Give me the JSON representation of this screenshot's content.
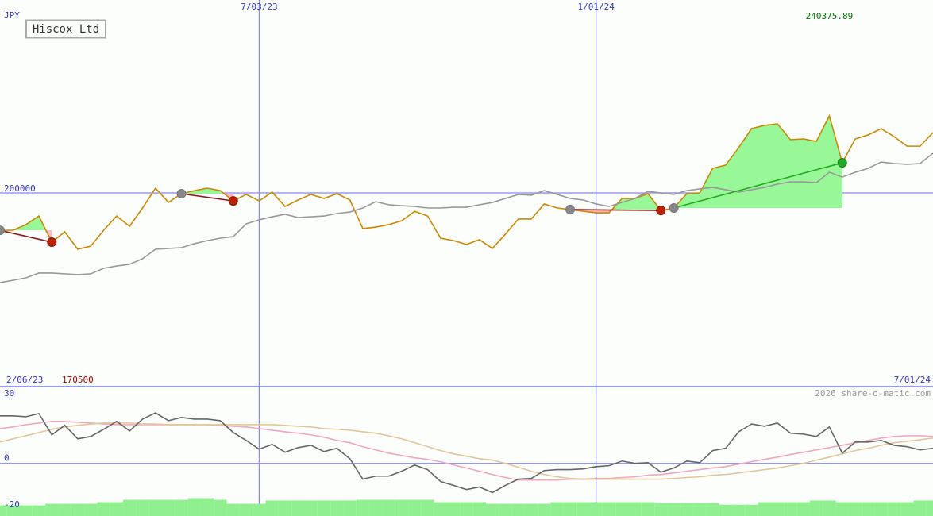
{
  "chart_data": [
    {
      "type": "line",
      "title": "Hiscox Ltd",
      "unit": "JPY",
      "xlim": [
        0,
        72
      ],
      "xticks": [
        {
          "value": 0,
          "label": "2/06/23"
        },
        {
          "value": 20,
          "label": "7/03/23"
        },
        {
          "value": 46,
          "label": "1/01/24"
        },
        {
          "value": 72,
          "label": "7/01/24"
        }
      ],
      "ylim": [
        98500,
        301100
      ],
      "yticks": [
        200000
      ],
      "series": [
        {
          "color": "#cc8800",
          "label_extremes": true,
          "values": [
            180400,
            180400,
            183400,
            187900,
            174200,
            179600,
            170500,
            172100,
            180400,
            187900,
            182500,
            192100,
            202500,
            195000,
            199600,
            201200,
            202500,
            201200,
            195800,
            199200,
            195800,
            200400,
            192900,
            196300,
            199200,
            197100,
            199600,
            196300,
            181300,
            182100,
            183400,
            185400,
            190400,
            187900,
            176300,
            175000,
            173000,
            175500,
            170922.24,
            178400,
            186300,
            186300,
            194200,
            192100,
            191300,
            190400,
            189600,
            189600,
            197100,
            197100,
            199600,
            190800,
            192100,
            199600,
            200000,
            212900,
            214600,
            223700,
            233700,
            235400,
            236200,
            227900,
            228300,
            227000,
            240375.89,
            215800,
            228300,
            230400,
            233700,
            229500,
            224500,
            224500,
            231600
          ]
        },
        {
          "color": "#999999",
          "values": [
            153000,
            154200,
            155500,
            158000,
            158000,
            157600,
            157200,
            157600,
            160500,
            161700,
            162600,
            165500,
            170500,
            170900,
            171300,
            173400,
            175000,
            176300,
            177100,
            183800,
            185900,
            187500,
            188800,
            187100,
            187500,
            187900,
            189200,
            190000,
            192100,
            195400,
            193800,
            193300,
            192900,
            192100,
            192100,
            192500,
            192500,
            193800,
            195000,
            197100,
            199200,
            198800,
            201200,
            199200,
            197100,
            196300,
            194200,
            192900,
            195000,
            197100,
            200800,
            200000,
            199200,
            201200,
            202100,
            202900,
            201700,
            200400,
            201700,
            202900,
            204600,
            205800,
            205800,
            205400,
            210800,
            208300,
            210800,
            212900,
            216200,
            215400,
            215000,
            215400,
            220800
          ]
        }
      ],
      "trades": [
        {
          "entry": 0,
          "exit": 4
        },
        {
          "entry": 14,
          "exit": 18
        },
        {
          "entry": 44,
          "exit": 51
        },
        {
          "entry": 52,
          "exit": 65
        }
      ]
    },
    {
      "type": "line",
      "credit": "2026 share-o-matic.com",
      "xlim": [
        0,
        72
      ],
      "ylim": [
        -22.7,
        33.1
      ],
      "yticks": [
        30,
        0,
        -20
      ],
      "grid": "zero",
      "series": [
        {
          "type": "bar",
          "color": "#90f090",
          "values": [
            -18.1,
            -18.1,
            -18.1,
            -18.1,
            -17.4,
            -17.4,
            -17.4,
            -17.4,
            -16.7,
            -16.7,
            -15.7,
            -15.7,
            -15.7,
            -15.7,
            -15.7,
            -15.0,
            -15.0,
            -15.7,
            -17.4,
            -17.4,
            -17.4,
            -16.0,
            -16.0,
            -16.0,
            -16.0,
            -16.0,
            -16.0,
            -16.0,
            -15.7,
            -15.7,
            -15.7,
            -15.7,
            -15.7,
            -15.7,
            -16.7,
            -16.7,
            -16.7,
            -16.7,
            -17.4,
            -17.4,
            -17.4,
            -17.4,
            -17.4,
            -16.7,
            -16.7,
            -16.7,
            -16.7,
            -16.7,
            -16.7,
            -16.7,
            -16.7,
            -17.1,
            -17.1,
            -17.1,
            -17.1,
            -17.1,
            -17.8,
            -17.8,
            -17.8,
            -16.7,
            -16.7,
            -16.7,
            -16.7,
            -16.0,
            -16.0,
            -16.7,
            -16.7,
            -16.7,
            -16.7,
            -16.7,
            -16.7,
            -16.0,
            -16.0
          ]
        },
        {
          "color": "#f0a8c0",
          "values": [
            15.0,
            15.7,
            16.7,
            17.4,
            18.1,
            18.1,
            17.7,
            17.4,
            17.0,
            16.7,
            16.7,
            16.7,
            16.7,
            16.7,
            16.7,
            16.7,
            16.7,
            16.4,
            16.0,
            15.7,
            15.0,
            14.3,
            13.6,
            13.0,
            12.3,
            11.3,
            9.9,
            8.9,
            7.2,
            5.8,
            4.4,
            3.4,
            2.4,
            1.7,
            0.7,
            -0.7,
            -2.0,
            -3.4,
            -4.8,
            -6.1,
            -7.2,
            -7.2,
            -7.2,
            -7.2,
            -6.8,
            -6.8,
            -6.5,
            -6.5,
            -6.1,
            -5.8,
            -5.1,
            -4.8,
            -4.1,
            -3.4,
            -2.7,
            -2.0,
            -1.4,
            -0.3,
            0.7,
            1.7,
            2.7,
            3.8,
            4.8,
            5.8,
            6.8,
            7.8,
            8.9,
            9.9,
            10.9,
            11.6,
            11.9,
            11.9,
            11.6
          ]
        },
        {
          "color": "#e0c898",
          "values": [
            9.2,
            10.6,
            11.9,
            13.3,
            14.7,
            15.7,
            16.4,
            17.0,
            17.4,
            17.4,
            17.4,
            17.0,
            17.0,
            16.7,
            16.7,
            16.7,
            16.7,
            16.7,
            16.7,
            16.7,
            16.7,
            16.7,
            16.4,
            16.0,
            15.7,
            15.0,
            14.7,
            14.3,
            13.6,
            13.0,
            11.9,
            10.6,
            8.9,
            7.2,
            5.5,
            4.1,
            3.1,
            2.0,
            1.4,
            0,
            -1.7,
            -3.4,
            -4.8,
            -5.8,
            -6.5,
            -6.8,
            -6.8,
            -6.8,
            -6.8,
            -6.8,
            -6.8,
            -6.8,
            -6.5,
            -6.1,
            -5.8,
            -5.1,
            -4.8,
            -4.1,
            -3.4,
            -2.7,
            -2.0,
            -1.0,
            0,
            1.4,
            2.7,
            4.1,
            5.5,
            6.5,
            7.8,
            8.9,
            9.5,
            10.2,
            10.9
          ]
        },
        {
          "color": "#666666",
          "values": [
            20.5,
            20.5,
            20.1,
            21.5,
            12.3,
            16.4,
            10.6,
            11.6,
            14.7,
            18.1,
            14.0,
            19.1,
            21.8,
            18.4,
            19.8,
            19.1,
            19.1,
            18.4,
            13.3,
            9.9,
            6.1,
            8.2,
            4.8,
            6.8,
            7.8,
            5.1,
            6.5,
            2.0,
            -6.8,
            -5.5,
            -5.5,
            -3.4,
            -0.7,
            -2.7,
            -7.8,
            -9.5,
            -11.3,
            -10.2,
            -12.6,
            -9.5,
            -6.8,
            -6.5,
            -3.1,
            -2.7,
            -2.7,
            -2.4,
            -1.4,
            -1.0,
            1.0,
            0,
            0.3,
            -3.8,
            -2.0,
            1.0,
            0.3,
            5.5,
            6.5,
            13.6,
            17.0,
            16.0,
            17.4,
            13.0,
            12.6,
            11.6,
            15.7,
            4.4,
            9.2,
            9.2,
            9.9,
            7.8,
            7.2,
            5.8,
            6.5
          ]
        }
      ]
    }
  ]
}
